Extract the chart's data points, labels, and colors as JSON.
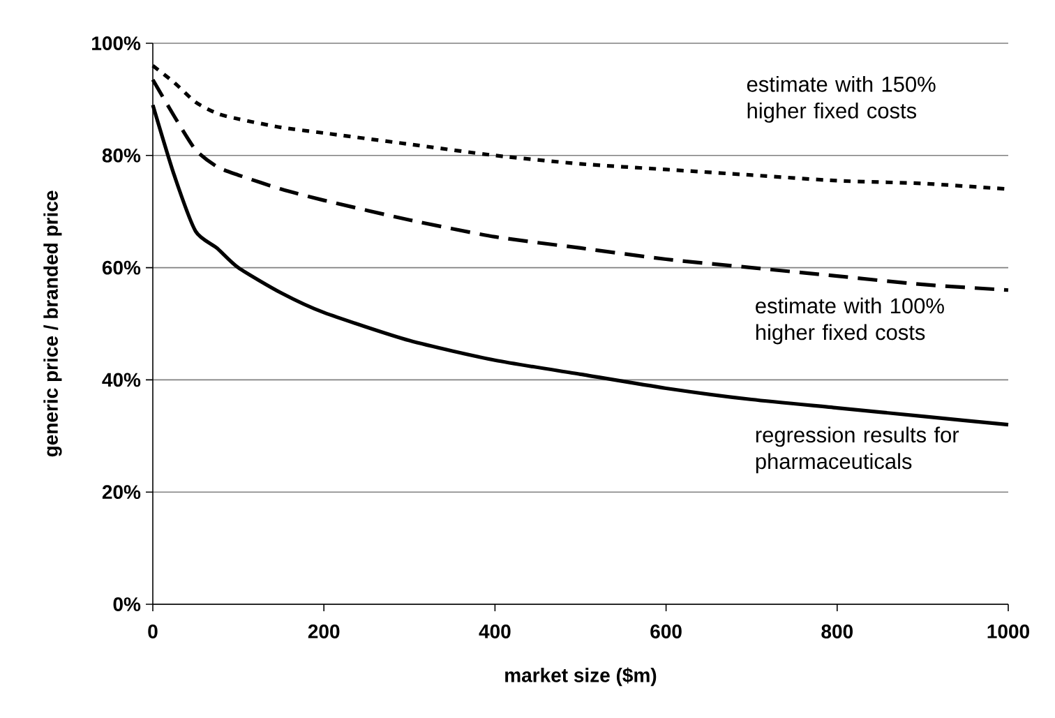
{
  "chart_data": {
    "type": "line",
    "xlabel": "market size ($m)",
    "ylabel": "generic price / branded price",
    "x": [
      0,
      25,
      50,
      75,
      100,
      150,
      200,
      300,
      400,
      500,
      600,
      700,
      800,
      900,
      1000
    ],
    "series": [
      {
        "color": "#000000",
        "line_style": "dotted",
        "values": [
          96,
          93,
          89.5,
          87.5,
          86.5,
          85,
          84,
          82,
          80,
          78.5,
          77.5,
          76.5,
          75.5,
          75,
          74
        ]
      },
      {
        "color": "#000000",
        "line_style": "dashed",
        "values": [
          93.5,
          87,
          81,
          78,
          76.5,
          74,
          72,
          68.5,
          65.5,
          63.5,
          61.5,
          60,
          58.5,
          57,
          56
        ]
      },
      {
        "color": "#000000",
        "line_style": "solid",
        "values": [
          89,
          76.5,
          66.5,
          63.5,
          60,
          55.5,
          52,
          47,
          43.5,
          41,
          38.5,
          36.5,
          35,
          33.5,
          32
        ]
      }
    ],
    "xlim": [
      0,
      1000
    ],
    "xticks": [
      0,
      200,
      400,
      600,
      800,
      1000
    ],
    "ylim": [
      0,
      100
    ],
    "yticks": [
      {
        "value": 0,
        "label": "0%"
      },
      {
        "value": 20,
        "label": "20%"
      },
      {
        "value": 40,
        "label": "40%"
      },
      {
        "value": 60,
        "label": "60%"
      },
      {
        "value": 80,
        "label": "80%"
      },
      {
        "value": 100,
        "label": "100%"
      }
    ],
    "grid": "y",
    "marker": "none",
    "annotations": [
      "estimate with 150% higher fixed costs",
      "estimate with 100% higher fixed costs",
      "regression results for pharmaceuticals"
    ]
  }
}
